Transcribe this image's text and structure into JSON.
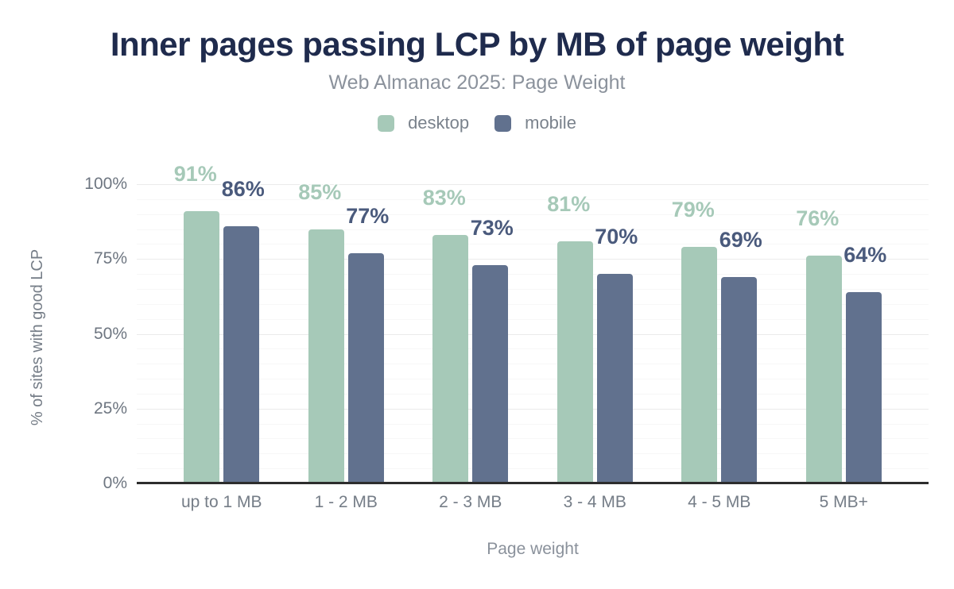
{
  "title": "Inner pages passing LCP by MB of page weight",
  "subtitle": "Web Almanac 2025: Page Weight",
  "chart_data": {
    "type": "bar",
    "title": "Inner pages passing LCP by MB of page weight",
    "subtitle": "Web Almanac 2025: Page Weight",
    "categories": [
      "up to 1 MB",
      "1 - 2 MB",
      "2 - 3 MB",
      "3 - 4 MB",
      "4 - 5 MB",
      "5 MB+"
    ],
    "series": [
      {
        "name": "desktop",
        "color": "#a6c9b8",
        "label_color": "#a6c9b8",
        "values": [
          91,
          85,
          83,
          81,
          79,
          76
        ]
      },
      {
        "name": "mobile",
        "color": "#61718e",
        "label_color": "#4a5a7c",
        "values": [
          86,
          77,
          73,
          70,
          69,
          64
        ]
      }
    ],
    "data_label_suffix": "%",
    "xlabel": "Page weight",
    "ylabel": "% of sites with good LCP",
    "ylim": [
      0,
      100
    ],
    "yticks": [
      0,
      25,
      50,
      75,
      100
    ],
    "ytick_suffix": "%",
    "grid": {
      "minor_step": 5,
      "major_step": 25
    },
    "legend_position": "top"
  }
}
